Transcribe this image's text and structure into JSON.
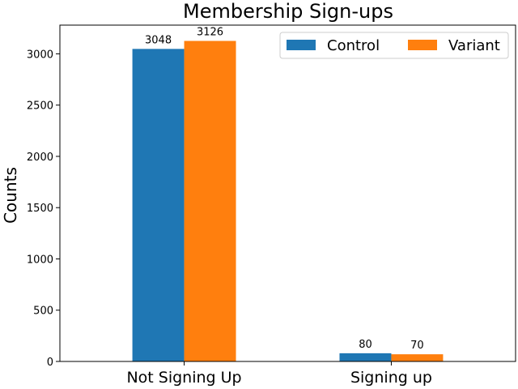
{
  "chart_data": {
    "type": "bar",
    "title": "Membership Sign-ups",
    "xlabel": "",
    "ylabel": "Counts",
    "categories": [
      "Not Signing Up",
      "Signing up"
    ],
    "series": [
      {
        "name": "Control",
        "values": [
          3048,
          80
        ],
        "color": "#1f77b4"
      },
      {
        "name": "Variant",
        "values": [
          3126,
          70
        ],
        "color": "#ff7f0e"
      }
    ],
    "ylim": [
      0,
      3280
    ],
    "yticks": [
      0,
      500,
      1000,
      1500,
      2000,
      2500,
      3000
    ],
    "data_labels": true,
    "grid": false,
    "legend_position": "top-right"
  }
}
